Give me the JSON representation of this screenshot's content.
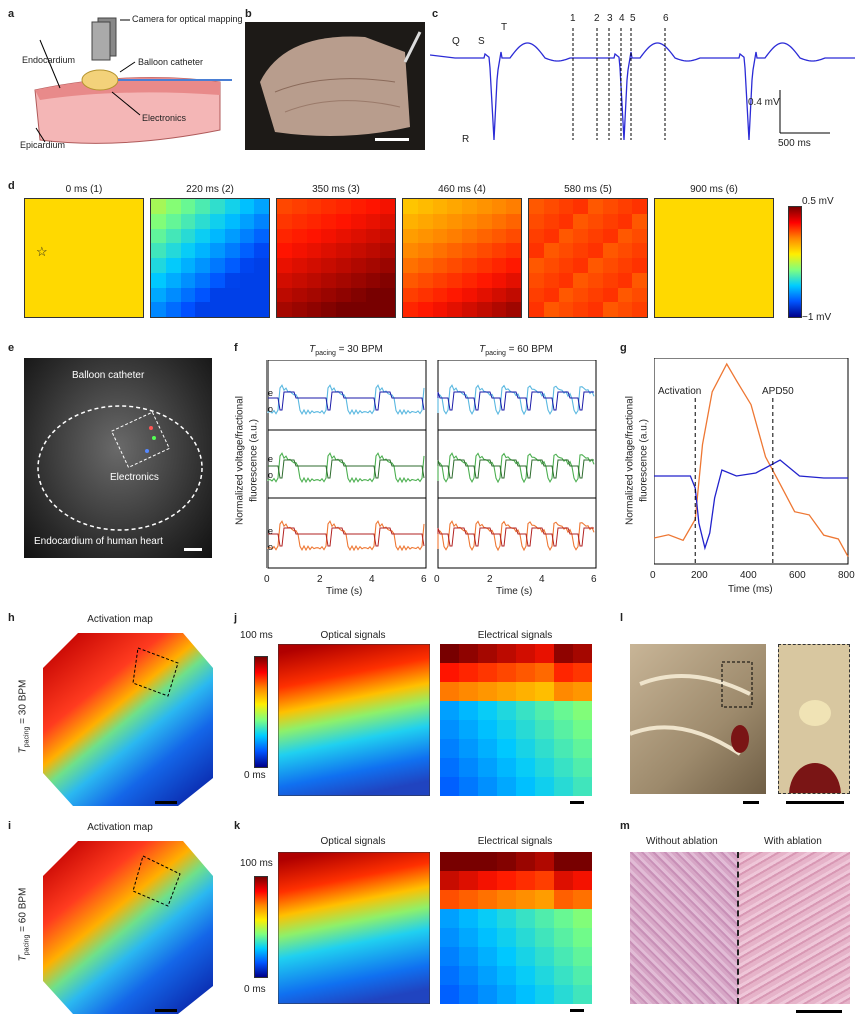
{
  "panels": {
    "a": {
      "letter": "a",
      "camera": "Camera for optical mapping",
      "balloon": "Balloon catheter",
      "endocardium": "Endocardium",
      "electronics": "Electronics",
      "epicardium": "Epicardium"
    },
    "b": {
      "letter": "b"
    },
    "c": {
      "letter": "c",
      "Q": "Q",
      "R": "R",
      "S": "S",
      "T": "T",
      "markers": [
        "1",
        "2",
        "3",
        "4",
        "5",
        "6"
      ],
      "scale_v": "0.4 mV",
      "scale_t": "500 ms"
    },
    "d": {
      "letter": "d",
      "titles": [
        "0 ms (1)",
        "220 ms (2)",
        "350 ms (3)",
        "460 ms (4)",
        "580 ms (5)",
        "900 ms (6)"
      ],
      "cbar_max": "0.5 mV",
      "cbar_min": "−1 mV",
      "star": "☆"
    },
    "e": {
      "letter": "e",
      "balloon": "Balloon catheter",
      "electronics": "Electronics",
      "endocardium": "Endocardium of human heart"
    },
    "f": {
      "letter": "f",
      "title1_pre": "T",
      "title1_sub": "pacing",
      "title1_post": " = 30 BPM",
      "title2_pre": "T",
      "title2_sub": "pacing",
      "title2_post": " = 60 BPM",
      "ylabel1": "Normalized voltage/fractional",
      "ylabel2": "fluorescence (a.u.)",
      "xlabel": "Time (s)",
      "xticks": [
        "0",
        "2",
        "4",
        "6"
      ],
      "e": "e",
      "o": "o"
    },
    "g": {
      "letter": "g",
      "activation": "Activation",
      "apd": "APD50",
      "ylabel1": "Normalized voltage/fractional",
      "ylabel2": "fluorescence (a.u.)",
      "xlabel": "Time (ms)",
      "xticks": [
        "0",
        "200",
        "400",
        "600",
        "800"
      ]
    },
    "h": {
      "letter": "h",
      "title": "Activation map",
      "ylab_pre": "T",
      "ylab_sub": "pacing",
      "ylab_post": " = 30 BPM"
    },
    "i": {
      "letter": "i",
      "title": "Activation map",
      "ylab_pre": "T",
      "ylab_sub": "pacing",
      "ylab_post": " = 60 BPM"
    },
    "j": {
      "letter": "j",
      "optical": "Optical signals",
      "electrical": "Electrical signals",
      "cbar_max": "100 ms",
      "cbar_min": "0 ms"
    },
    "k": {
      "letter": "k",
      "optical": "Optical signals",
      "electrical": "Electrical signals",
      "cbar_max": "100 ms",
      "cbar_min": "0 ms"
    },
    "l": {
      "letter": "l"
    },
    "m": {
      "letter": "m",
      "without": "Without ablation",
      "with": "With ablation"
    }
  },
  "chart_data": [
    {
      "type": "line",
      "panel": "c",
      "title": "",
      "xlabel": "",
      "ylabel": "",
      "series": [
        {
          "name": "ECG",
          "color": "#2b2bd6"
        }
      ]
    },
    {
      "type": "line",
      "panel": "f",
      "title": "T pacing = 30 BPM / 60 BPM",
      "xlabel": "Time (s)",
      "ylabel": "Normalized voltage/fractional fluorescence (a.u.)",
      "xlim": [
        0,
        6
      ],
      "series": [
        {
          "name": "electrical",
          "color": "#1a1aa8"
        },
        {
          "name": "optical blue",
          "color": "#5ab8e0"
        },
        {
          "name": "optical green",
          "color": "#4caf50"
        },
        {
          "name": "optical orange",
          "color": "#ee7733"
        }
      ]
    },
    {
      "type": "line",
      "panel": "g",
      "xlabel": "Time (ms)",
      "ylabel": "Normalized voltage/fractional fluorescence (a.u.)",
      "xlim": [
        0,
        800
      ],
      "annotations": [
        {
          "label": "Activation",
          "x": 170
        },
        {
          "label": "APD50",
          "x": 490
        }
      ],
      "series": [
        {
          "name": "optical",
          "color": "#ee7733"
        },
        {
          "name": "electrical",
          "color": "#2222cc"
        }
      ]
    }
  ]
}
